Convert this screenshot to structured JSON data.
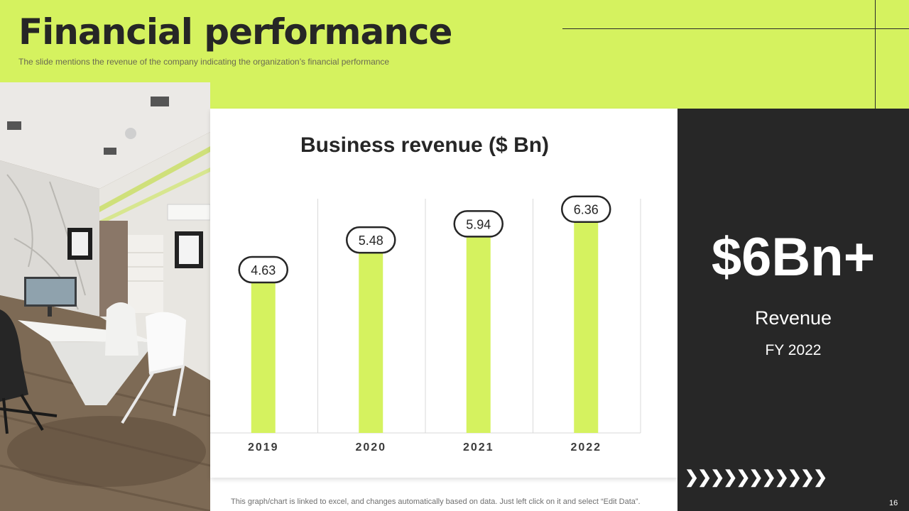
{
  "header": {
    "title": "Financial performance",
    "subtitle": "The slide mentions the revenue  of the company indicating the organization’s financial performance"
  },
  "photo": {
    "alt": "modern office interior"
  },
  "chart_data": {
    "type": "bar",
    "title": "Business revenue ($ Bn)",
    "categories": [
      "2019",
      "2020",
      "2021",
      "2022"
    ],
    "values": [
      4.63,
      5.48,
      5.94,
      6.36
    ],
    "data_labels": [
      "4.63",
      "5.48",
      "5.94",
      "6.36"
    ],
    "xlabel": "",
    "ylabel": "",
    "ylim": [
      0,
      6.7
    ],
    "grid": "vertical",
    "legend": "none",
    "bar_color": "#d5f25f"
  },
  "highlight": {
    "value": "$6Bn+",
    "label": "Revenue",
    "sublabel": "FY 2022",
    "arrows": "❯❯❯❯❯❯❯❯❯❯❯"
  },
  "footer": {
    "note": "This graph/chart is linked to excel,  and changes automatically based on data. Just left click on it and select “Edit Data”.",
    "page_number": "16"
  },
  "colors": {
    "accent": "#d5f25f",
    "dark": "#272727",
    "text": "#262626"
  }
}
